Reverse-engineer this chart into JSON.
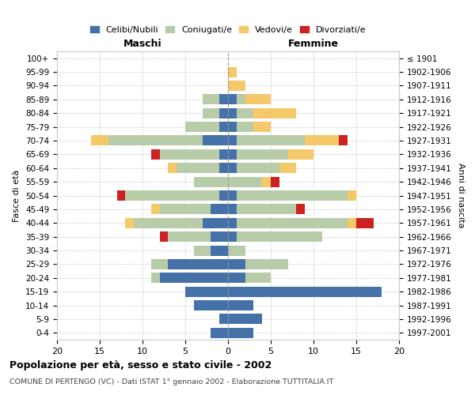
{
  "age_groups": [
    "0-4",
    "5-9",
    "10-14",
    "15-19",
    "20-24",
    "25-29",
    "30-34",
    "35-39",
    "40-44",
    "45-49",
    "50-54",
    "55-59",
    "60-64",
    "65-69",
    "70-74",
    "75-79",
    "80-84",
    "85-89",
    "90-94",
    "95-99",
    "100+"
  ],
  "birth_years": [
    "1997-2001",
    "1992-1996",
    "1987-1991",
    "1982-1986",
    "1977-1981",
    "1972-1976",
    "1967-1971",
    "1962-1966",
    "1957-1961",
    "1952-1956",
    "1947-1951",
    "1942-1946",
    "1937-1941",
    "1932-1936",
    "1927-1931",
    "1922-1926",
    "1917-1921",
    "1912-1916",
    "1907-1911",
    "1902-1906",
    "≤ 1901"
  ],
  "maschi": {
    "celibi": [
      2,
      1,
      4,
      5,
      8,
      7,
      2,
      2,
      3,
      2,
      1,
      0,
      1,
      1,
      3,
      1,
      1,
      1,
      0,
      0,
      0
    ],
    "coniugati": [
      0,
      0,
      0,
      0,
      1,
      2,
      2,
      5,
      8,
      6,
      11,
      4,
      5,
      7,
      11,
      4,
      2,
      2,
      0,
      0,
      0
    ],
    "vedovi": [
      0,
      0,
      0,
      0,
      0,
      0,
      0,
      0,
      1,
      1,
      0,
      0,
      1,
      0,
      2,
      0,
      0,
      0,
      0,
      0,
      0
    ],
    "divorziati": [
      0,
      0,
      0,
      0,
      0,
      0,
      0,
      1,
      0,
      0,
      1,
      0,
      0,
      1,
      0,
      0,
      0,
      0,
      0,
      0,
      0
    ]
  },
  "femmine": {
    "nubili": [
      3,
      4,
      3,
      18,
      2,
      2,
      0,
      1,
      1,
      1,
      1,
      0,
      1,
      1,
      1,
      1,
      1,
      1,
      0,
      0,
      0
    ],
    "coniugate": [
      0,
      0,
      0,
      0,
      3,
      5,
      2,
      10,
      13,
      7,
      13,
      4,
      5,
      6,
      8,
      2,
      2,
      1,
      0,
      0,
      0
    ],
    "vedove": [
      0,
      0,
      0,
      0,
      0,
      0,
      0,
      0,
      1,
      0,
      1,
      1,
      2,
      3,
      4,
      2,
      5,
      3,
      2,
      1,
      0
    ],
    "divorziate": [
      0,
      0,
      0,
      0,
      0,
      0,
      0,
      0,
      2,
      1,
      0,
      1,
      0,
      0,
      1,
      0,
      0,
      0,
      0,
      0,
      0
    ]
  },
  "colors": {
    "celibi": "#4472a8",
    "coniugati": "#b8ccaa",
    "vedovi": "#f5c96a",
    "divorziati": "#cc2222"
  },
  "xlim": 20,
  "title": "Popolazione per età, sesso e stato civile - 2002",
  "subtitle": "COMUNE DI PERTENGO (VC) - Dati ISTAT 1° gennaio 2002 - Elaborazione TUTTITALIA.IT",
  "ylabel_left": "Fasce di età",
  "ylabel_right": "Anni di nascita",
  "xlabel_left": "Maschi",
  "xlabel_right": "Femmine",
  "legend_labels": [
    "Celibi/Nubili",
    "Coniugati/e",
    "Vedovi/e",
    "Divorziati/e"
  ],
  "background_color": "#ffffff",
  "grid_color": "#cccccc"
}
